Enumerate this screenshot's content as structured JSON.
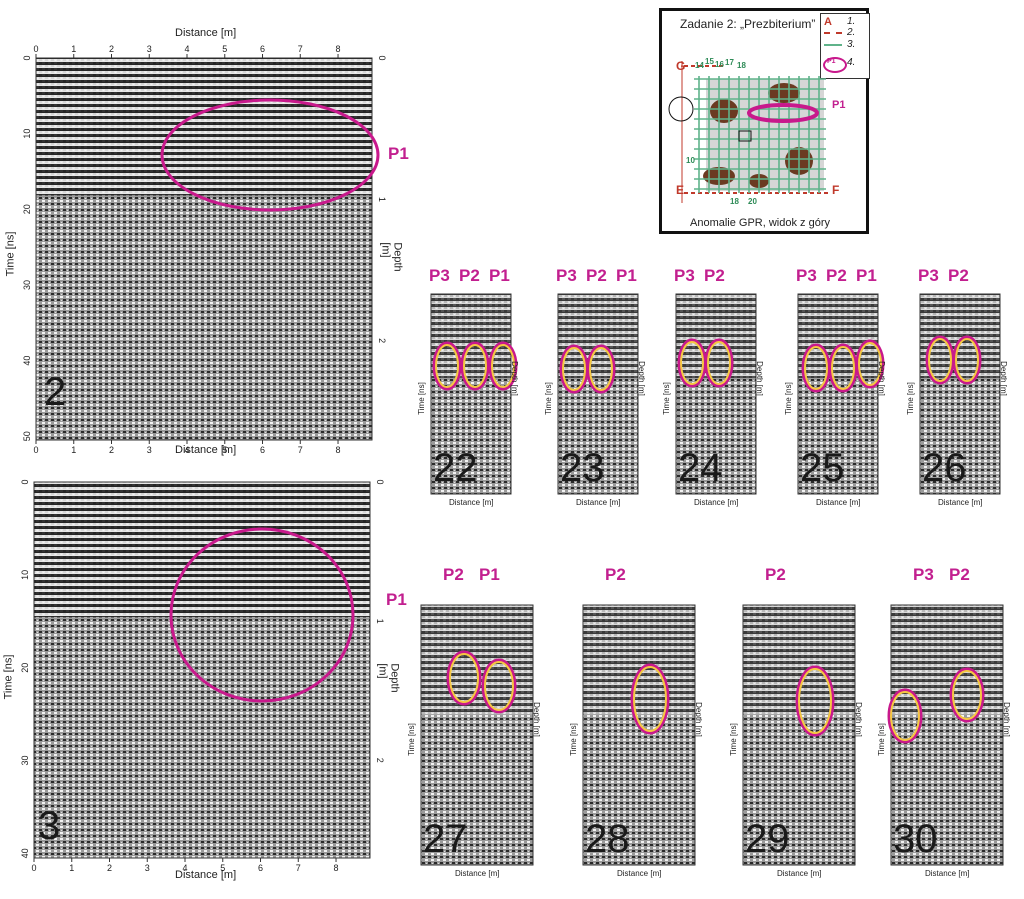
{
  "large_panels": [
    {
      "id": "2",
      "number_label": "2",
      "x_axis_label": "Distance [m]",
      "y_axis_label": "Time [ns]",
      "depth_axis_label": "Depth [m]",
      "x_ticks": [
        "0",
        "1",
        "2",
        "3",
        "4",
        "5",
        "6",
        "7",
        "8"
      ],
      "time_ticks": [
        "0",
        "10",
        "20",
        "30",
        "40",
        "50"
      ],
      "depth_ticks": [
        "0",
        "1",
        "2"
      ],
      "anomaly_label": "P1"
    },
    {
      "id": "3",
      "number_label": "3",
      "x_axis_label": "Distance [m]",
      "y_axis_label": "Time [ns]",
      "depth_axis_label": "Depth [m]",
      "x_ticks": [
        "0",
        "1",
        "2",
        "3",
        "4",
        "5",
        "6",
        "7",
        "8"
      ],
      "time_ticks": [
        "0",
        "10",
        "20",
        "30",
        "40"
      ],
      "depth_ticks": [
        "0",
        "1",
        "2"
      ],
      "anomaly_label": "P1"
    }
  ],
  "small_panels": [
    {
      "id": "22",
      "number_label": "22",
      "labels": [
        "P3",
        "P2",
        "P1"
      ]
    },
    {
      "id": "23",
      "number_label": "23",
      "labels": [
        "P3",
        "P2",
        "P1"
      ]
    },
    {
      "id": "24",
      "number_label": "24",
      "labels": [
        "P3",
        "P2"
      ]
    },
    {
      "id": "25",
      "number_label": "25",
      "labels": [
        "P3",
        "P2",
        "P1"
      ]
    },
    {
      "id": "26",
      "number_label": "26",
      "labels": [
        "P3",
        "P2"
      ]
    },
    {
      "id": "27",
      "number_label": "27",
      "labels": [
        "P2",
        "P1"
      ]
    },
    {
      "id": "28",
      "number_label": "28",
      "labels": [
        "P2"
      ]
    },
    {
      "id": "29",
      "number_label": "29",
      "labels": [
        "P2"
      ]
    },
    {
      "id": "30",
      "number_label": "30",
      "labels": [
        "P3",
        "P2"
      ]
    }
  ],
  "small_axis": {
    "x_axis_label": "Distance [m]",
    "y_axis_label": "Time [ns]",
    "depth_axis_label": "Depth [m]"
  },
  "inset": {
    "title": "Zadanie 2: „Prezbiterium”",
    "legend": [
      "1.",
      "2.",
      "3.",
      "4."
    ],
    "legend_marker": "A",
    "legend_p1": "P1",
    "corner_labels": [
      "G",
      "E",
      "F"
    ],
    "grid_numbers": [
      "14",
      "15",
      "16",
      "17",
      "18",
      "10",
      "18",
      "20"
    ],
    "anomaly_label": "P1",
    "caption": "Anomalie GPR, widok z góry"
  },
  "colors": {
    "magenta": "#c8198c",
    "yellow": "#f5c842",
    "grid_green": "#5fb38a",
    "corner_red": "#c0392b",
    "building": "#6b3a22"
  }
}
